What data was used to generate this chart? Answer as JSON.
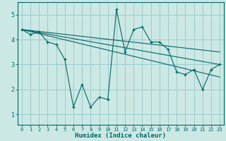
{
  "xlabel": "Humidex (Indice chaleur)",
  "background_color": "#cce8e4",
  "grid_color": "#99cccc",
  "line_color": "#006666",
  "xlim": [
    -0.5,
    23.5
  ],
  "ylim": [
    0.6,
    5.5
  ],
  "yticks": [
    1,
    2,
    3,
    4,
    5
  ],
  "xticks": [
    0,
    1,
    2,
    3,
    4,
    5,
    6,
    7,
    8,
    9,
    10,
    11,
    12,
    13,
    14,
    15,
    16,
    17,
    18,
    19,
    20,
    21,
    22,
    23
  ],
  "xtick_labels": [
    "0",
    "1",
    "2",
    "3",
    "4",
    "5",
    "6",
    "7",
    "8",
    "9",
    "10",
    "11",
    "12",
    "13",
    "14",
    "15",
    "16",
    "17",
    "18",
    "19",
    "20",
    "21",
    "22",
    "23"
  ],
  "series": [
    {
      "x": [
        0,
        1,
        2,
        3,
        4,
        5,
        6,
        7,
        8,
        9,
        10,
        11,
        12,
        13,
        14,
        15,
        16,
        17,
        18,
        19,
        20,
        21,
        22,
        23
      ],
      "y": [
        4.4,
        4.2,
        4.3,
        3.9,
        3.8,
        3.2,
        1.3,
        2.2,
        1.3,
        1.7,
        1.6,
        5.2,
        3.5,
        4.4,
        4.5,
        3.9,
        3.9,
        3.6,
        2.7,
        2.6,
        2.8,
        2.0,
        2.8,
        3.0
      ]
    },
    {
      "x": [
        0,
        23
      ],
      "y": [
        4.4,
        3.0
      ]
    },
    {
      "x": [
        0,
        23
      ],
      "y": [
        4.4,
        2.5
      ]
    },
    {
      "x": [
        0,
        23
      ],
      "y": [
        4.4,
        3.5
      ]
    }
  ]
}
